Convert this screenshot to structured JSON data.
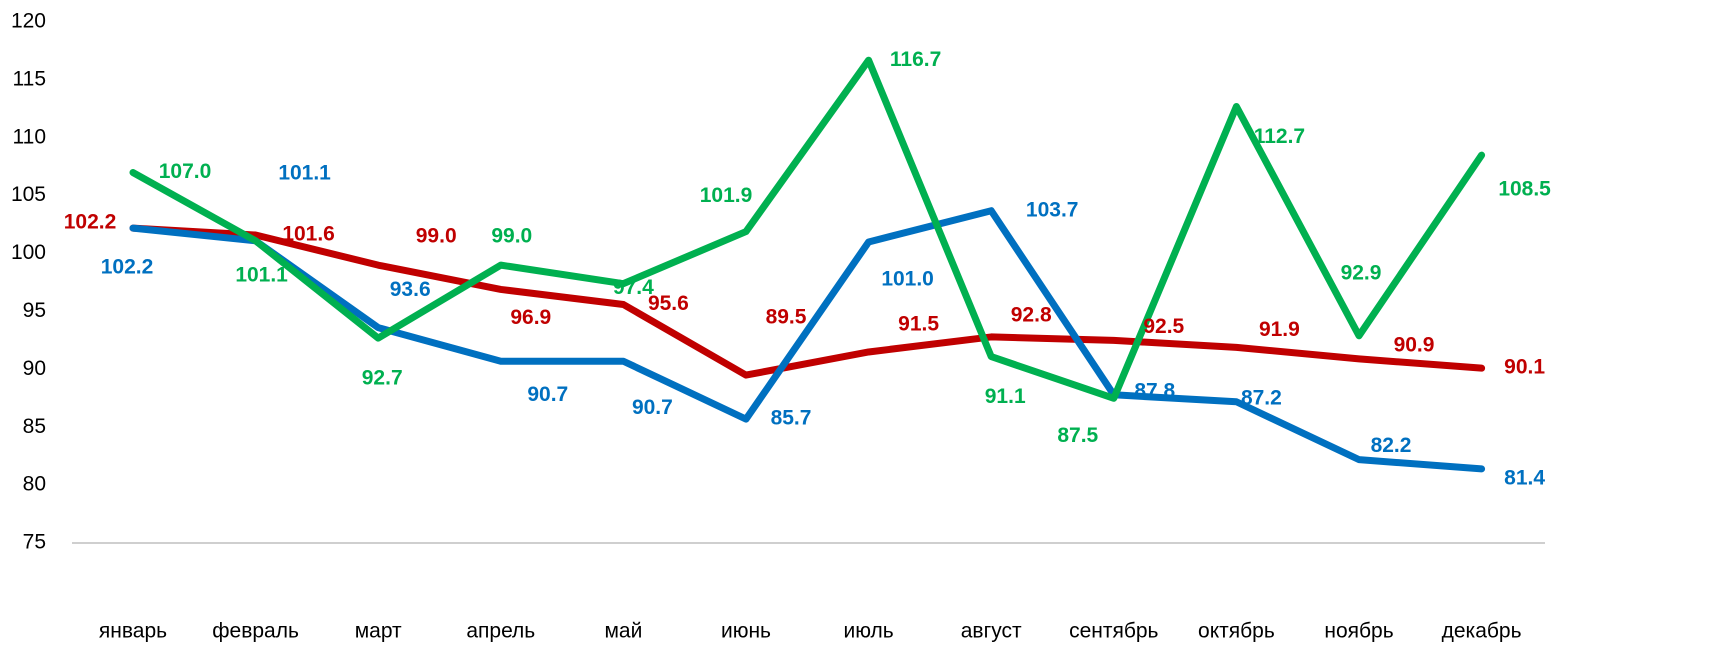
{
  "chart_data": {
    "type": "line",
    "categories": [
      "январь",
      "февраль",
      "март",
      "апрель",
      "май",
      "июнь",
      "июль",
      "август",
      "сентябрь",
      "октябрь",
      "ноябрь",
      "декабрь"
    ],
    "series": [
      {
        "color": "#c00000",
        "values": [
          102.2,
          101.6,
          99.0,
          96.9,
          95.6,
          89.5,
          91.5,
          92.8,
          92.5,
          91.9,
          90.9,
          90.1
        ],
        "value_labels": [
          "102.2",
          "101.6",
          "99.0",
          "96.9",
          "95.6",
          "89.5",
          "91.5",
          "92.8",
          "92.5",
          "91.9",
          "90.9",
          "90.1"
        ]
      },
      {
        "color": "#0070c0",
        "values": [
          102.2,
          101.1,
          93.6,
          90.7,
          90.7,
          85.7,
          101.0,
          103.7,
          87.8,
          87.2,
          82.2,
          81.4
        ],
        "value_labels": [
          "102.2",
          "101.1",
          "93.6",
          "90.7",
          "90.7",
          "85.7",
          "101.0",
          "103.7",
          "87.8",
          "87.2",
          "82.2",
          "81.4"
        ]
      },
      {
        "color": "#00b050",
        "values": [
          107.0,
          101.1,
          92.7,
          99.0,
          97.4,
          101.9,
          116.7,
          91.1,
          87.5,
          112.7,
          92.9,
          108.5
        ],
        "value_labels": [
          "107.0",
          "101.1",
          "92.7",
          "99.0",
          "97.4",
          "101.9",
          "116.7",
          "91.1",
          "87.5",
          "112.7",
          "92.9",
          "108.5"
        ]
      }
    ],
    "ylim": [
      75,
      120
    ],
    "yticks": [
      75,
      80,
      85,
      90,
      95,
      100,
      105,
      110,
      115,
      120
    ],
    "grid": false
  }
}
